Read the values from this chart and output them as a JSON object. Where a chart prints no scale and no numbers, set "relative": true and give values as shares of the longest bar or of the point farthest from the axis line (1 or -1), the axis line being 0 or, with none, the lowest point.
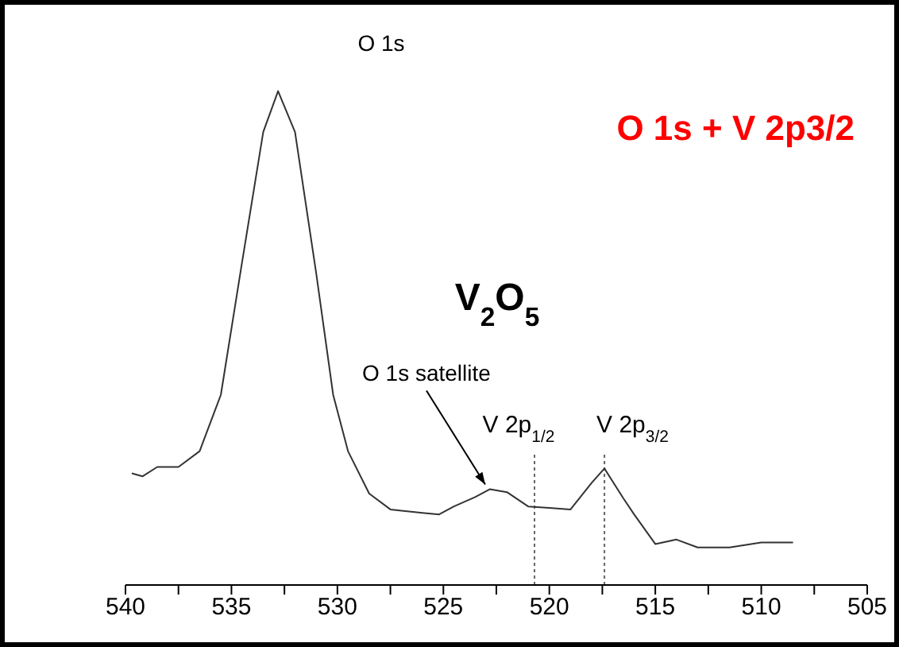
{
  "chart_data": {
    "type": "line",
    "title": "O 1s + V 2p3/2",
    "relative": true,
    "x": [
      539.7,
      539.2,
      538.5,
      537.5,
      536.5,
      535.5,
      534.5,
      533.5,
      532.8,
      532,
      531,
      530.2,
      529.5,
      528.5,
      527.5,
      526,
      525.2,
      524.5,
      523.5,
      522.8,
      522,
      521,
      520,
      519,
      518,
      517.4,
      516.5,
      516,
      515,
      514,
      513,
      511.5,
      510,
      508.5
    ],
    "series": [
      {
        "color": "#333333",
        "values": [
          0.226,
          0.22,
          0.239,
          0.239,
          0.271,
          0.385,
          0.653,
          0.917,
          1,
          0.917,
          0.631,
          0.385,
          0.271,
          0.185,
          0.153,
          0.146,
          0.143,
          0.159,
          0.178,
          0.194,
          0.188,
          0.159,
          0.156,
          0.153,
          0.207,
          0.236,
          0.175,
          0.143,
          0.083,
          0.092,
          0.076,
          0.076,
          0.086,
          0.086
        ]
      }
    ],
    "xlim": [
      540,
      505
    ],
    "xticks": [
      540,
      {
        "value": 537.5,
        "label": null
      },
      535,
      {
        "value": 532.5,
        "label": null
      },
      530,
      {
        "value": 527.5,
        "label": null
      },
      525,
      {
        "value": 522.5,
        "label": null
      },
      520,
      {
        "value": 517.5,
        "label": null
      },
      515,
      {
        "value": 512.5,
        "label": null
      },
      510,
      {
        "value": 507.5,
        "label": null
      },
      505
    ],
    "ref_lines": [
      {
        "axis": "x",
        "value": 520.7,
        "label": "V  2p$_{1/2}$",
        "color": "#666666",
        "line_style": "dotted"
      },
      {
        "axis": "x",
        "value": 517.4,
        "label": "V  2p$_{3/2}$",
        "color": "#666666",
        "line_style": "dotted"
      }
    ],
    "annotations": [
      "O 1s",
      "V$_{2}$O$_{5}$",
      {
        "text": "O 1s satellite",
        "x": 522.8,
        "y": 0.194
      }
    ],
    "marker": "none",
    "line_style": "solid"
  }
}
